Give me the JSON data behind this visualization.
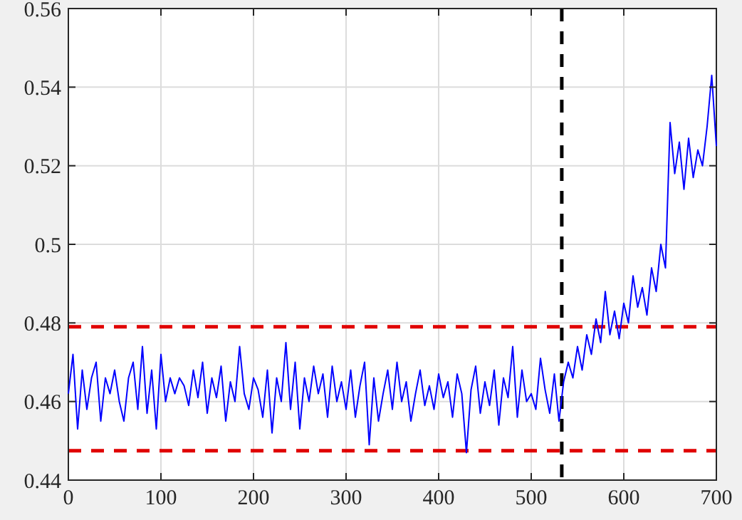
{
  "chart_data": {
    "type": "line",
    "xlim": [
      0,
      700
    ],
    "ylim": [
      0.44,
      0.56
    ],
    "xticks": [
      0,
      100,
      200,
      300,
      400,
      500,
      600,
      700
    ],
    "yticks": [
      0.44,
      0.46,
      0.48,
      {
        "value": 0.5,
        "label": "0.5"
      },
      0.52,
      0.54,
      0.56
    ],
    "grid": true,
    "x": [
      0,
      5,
      10,
      15,
      20,
      25,
      30,
      35,
      40,
      45,
      50,
      55,
      60,
      65,
      70,
      75,
      80,
      85,
      90,
      95,
      100,
      105,
      110,
      115,
      120,
      125,
      130,
      135,
      140,
      145,
      150,
      155,
      160,
      165,
      170,
      175,
      180,
      185,
      190,
      195,
      200,
      205,
      210,
      215,
      220,
      225,
      230,
      235,
      240,
      245,
      250,
      255,
      260,
      265,
      270,
      275,
      280,
      285,
      290,
      295,
      300,
      305,
      310,
      315,
      320,
      325,
      330,
      335,
      340,
      345,
      350,
      355,
      360,
      365,
      370,
      375,
      380,
      385,
      390,
      395,
      400,
      405,
      410,
      415,
      420,
      425,
      430,
      435,
      440,
      445,
      450,
      455,
      460,
      465,
      470,
      475,
      480,
      485,
      490,
      495,
      500,
      505,
      510,
      515,
      520,
      525,
      530,
      535,
      540,
      545,
      550,
      555,
      560,
      565,
      570,
      575,
      580,
      585,
      590,
      595,
      600,
      605,
      610,
      615,
      620,
      625,
      630,
      635,
      640,
      645,
      650,
      655,
      660,
      665,
      670,
      675,
      680,
      685,
      690,
      695,
      700
    ],
    "series": [
      {
        "color": "#0000ff",
        "values": [
          0.462,
          0.472,
          0.453,
          0.468,
          0.458,
          0.466,
          0.47,
          0.455,
          0.466,
          0.462,
          0.468,
          0.46,
          0.455,
          0.466,
          0.47,
          0.458,
          0.474,
          0.457,
          0.468,
          0.453,
          0.472,
          0.46,
          0.466,
          0.462,
          0.466,
          0.464,
          0.459,
          0.468,
          0.461,
          0.47,
          0.457,
          0.466,
          0.461,
          0.469,
          0.455,
          0.465,
          0.46,
          0.474,
          0.462,
          0.458,
          0.466,
          0.463,
          0.456,
          0.468,
          0.452,
          0.466,
          0.46,
          0.475,
          0.458,
          0.47,
          0.453,
          0.466,
          0.46,
          0.469,
          0.462,
          0.467,
          0.456,
          0.469,
          0.46,
          0.465,
          0.458,
          0.468,
          0.456,
          0.464,
          0.47,
          0.449,
          0.466,
          0.455,
          0.462,
          0.468,
          0.458,
          0.47,
          0.46,
          0.465,
          0.455,
          0.462,
          0.468,
          0.459,
          0.464,
          0.458,
          0.467,
          0.461,
          0.465,
          0.456,
          0.467,
          0.462,
          0.447,
          0.463,
          0.469,
          0.457,
          0.465,
          0.459,
          0.468,
          0.454,
          0.466,
          0.461,
          0.474,
          0.456,
          0.468,
          0.46,
          0.462,
          0.458,
          0.471,
          0.463,
          0.457,
          0.467,
          0.455,
          0.465,
          0.47,
          0.466,
          0.474,
          0.468,
          0.477,
          0.472,
          0.481,
          0.475,
          0.488,
          0.477,
          0.483,
          0.476,
          0.485,
          0.48,
          0.492,
          0.484,
          0.489,
          0.482,
          0.494,
          0.488,
          0.5,
          0.494,
          0.531,
          0.518,
          0.526,
          0.514,
          0.527,
          0.517,
          0.524,
          0.52,
          0.53,
          0.543,
          0.525
        ]
      }
    ],
    "ref_lines": [
      {
        "axis": "y",
        "value": 0.479,
        "color": "#e00000",
        "line_style": "dashed"
      },
      {
        "axis": "y",
        "value": 0.4475,
        "color": "#e00000",
        "line_style": "dashed"
      },
      {
        "axis": "x",
        "value": 533,
        "color": "#000000",
        "line_style": "dashed"
      }
    ]
  }
}
